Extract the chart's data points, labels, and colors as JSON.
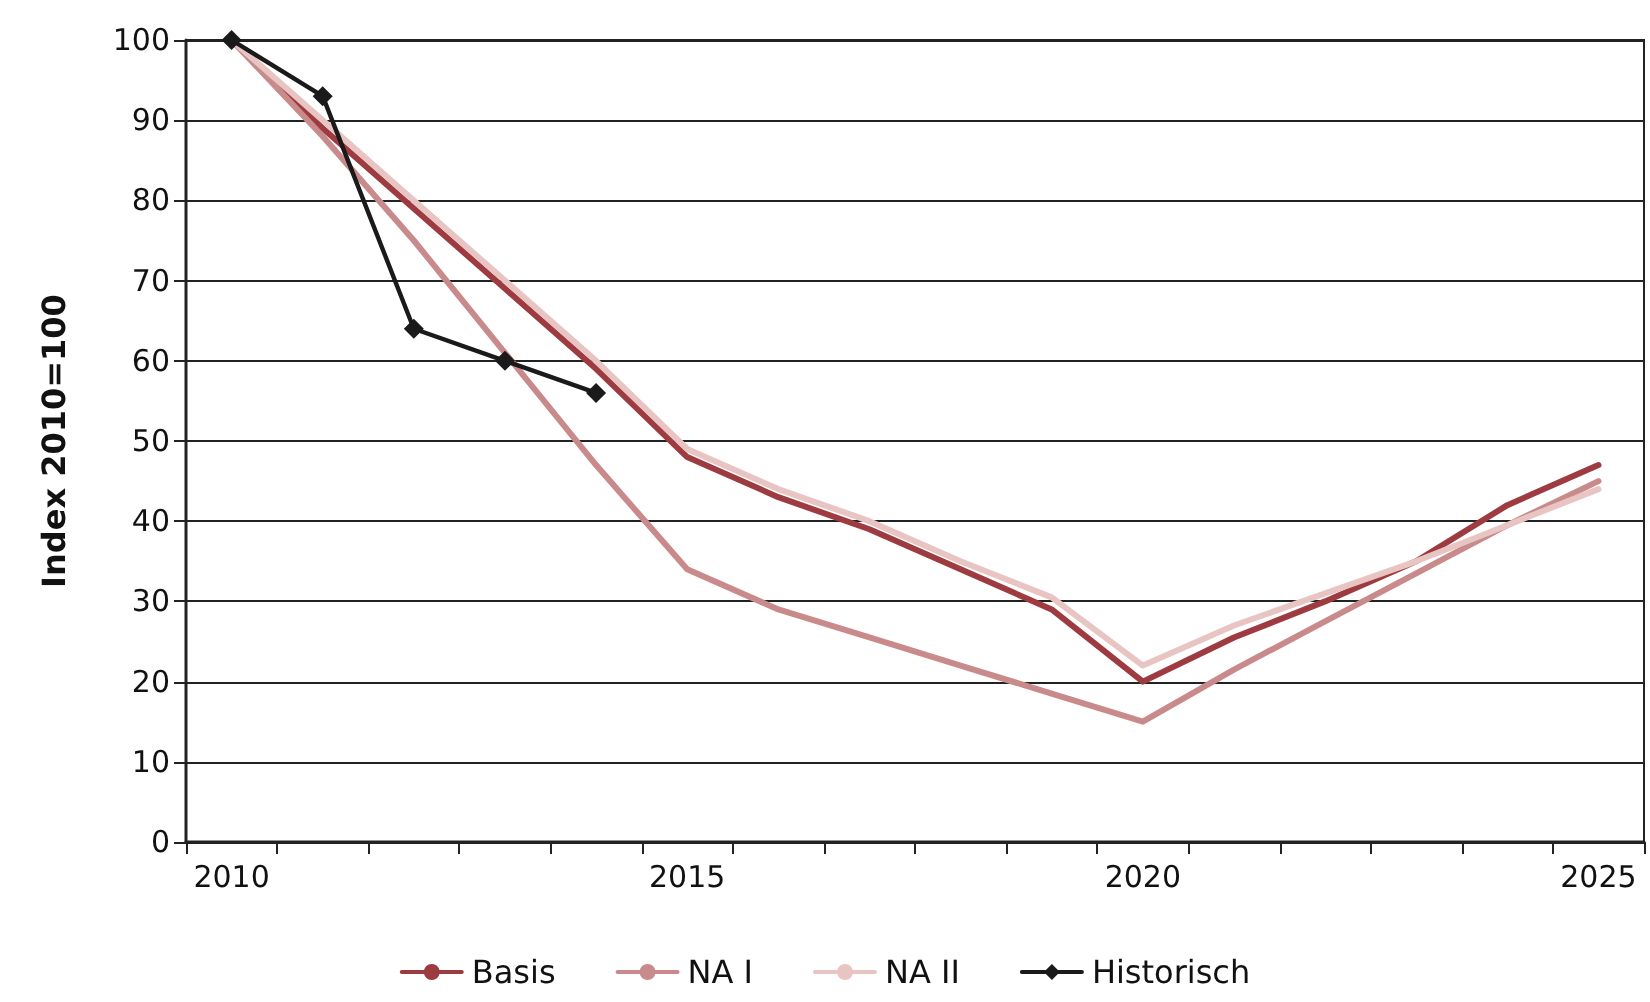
{
  "chart_data": {
    "type": "line",
    "ylabel": "Index 2010=100",
    "categories": [
      "2010",
      null,
      null,
      null,
      null,
      "2015",
      null,
      null,
      null,
      null,
      "2020",
      null,
      null,
      null,
      null,
      "2025"
    ],
    "series": [
      {
        "name": "Basis",
        "color": "#9e3b41",
        "marker": "none",
        "values": [
          100,
          89,
          79,
          69,
          59,
          48,
          43,
          39,
          34,
          29,
          20,
          25.5,
          30,
          35,
          42,
          47
        ]
      },
      {
        "name": "NA I",
        "color": "#c98a8b",
        "marker": "none",
        "values": [
          100,
          88,
          75,
          61,
          47,
          34,
          29,
          25.5,
          22,
          18.5,
          15,
          21.5,
          27.5,
          33.5,
          39.5,
          45
        ]
      },
      {
        "name": "NA II",
        "color": "#e8c5c3",
        "marker": "none",
        "values": [
          100,
          90,
          80,
          70,
          60,
          49,
          44,
          40,
          35,
          30.5,
          22,
          27,
          31,
          35,
          39.5,
          44
        ]
      },
      {
        "name": "Historisch",
        "color": "#1a1a1a",
        "marker": "diamond",
        "values": [
          100,
          93,
          64,
          60,
          56,
          null,
          null,
          null,
          null,
          null,
          null,
          null,
          null,
          null,
          null,
          null
        ]
      }
    ],
    "ylim": [
      0,
      100
    ],
    "yticks": [
      0,
      10,
      20,
      30,
      40,
      50,
      60,
      70,
      80,
      90,
      100
    ],
    "grid": "y",
    "legend": "bottom"
  }
}
